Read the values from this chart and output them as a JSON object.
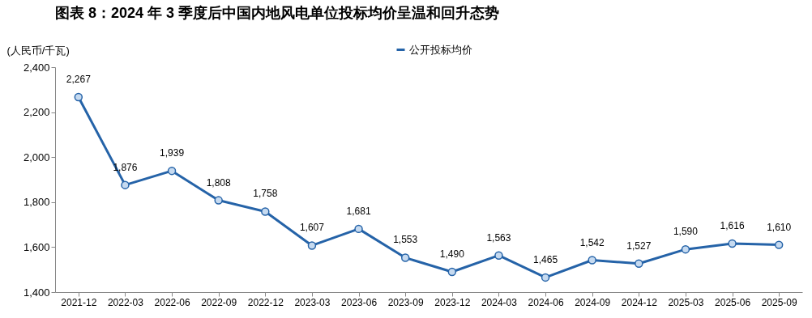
{
  "chart_data": {
    "type": "line",
    "title": "图表 8：2024 年 3 季度后中国内地风电单位投标均价呈温和回升态势",
    "ylabel": "(人民币/千瓦)",
    "categories": [
      "2021-12",
      "2022-03",
      "2022-06",
      "2022-09",
      "2022-12",
      "2023-03",
      "2023-06",
      "2023-09",
      "2023-12",
      "2024-03",
      "2024-06",
      "2024-09",
      "2024-12",
      "2025-03",
      "2025-06",
      "2025-09"
    ],
    "series": [
      {
        "name": "公开投标均价",
        "color": "#2563a8",
        "values": [
          2267,
          1876,
          1939,
          1808,
          1758,
          1607,
          1681,
          1553,
          1490,
          1563,
          1465,
          1542,
          1527,
          1590,
          1616,
          1610
        ]
      }
    ],
    "ylim": [
      1400,
      2400
    ],
    "yticks": [
      {
        "value": 1400,
        "label": "1,400"
      },
      {
        "value": 1600,
        "label": "1,600"
      },
      {
        "value": 1800,
        "label": "1,800"
      },
      {
        "value": 2000,
        "label": "2,000"
      },
      {
        "value": 2200,
        "label": "2,200"
      },
      {
        "value": 2400,
        "label": "2,400"
      }
    ],
    "value_labels": [
      "2,267",
      "1,876",
      "1,939",
      "1,808",
      "1,758",
      "1,607",
      "1,681",
      "1,553",
      "1,490",
      "1,563",
      "1,465",
      "1,542",
      "1,527",
      "1,590",
      "1,616",
      "1,610"
    ],
    "legend": "top",
    "marker": "circle",
    "line_style": "solid",
    "grid": false
  }
}
